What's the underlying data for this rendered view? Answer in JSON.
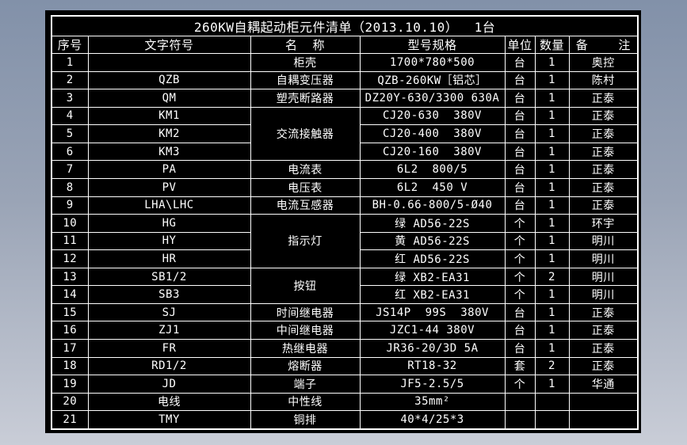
{
  "title": "260KW自耦起动柜元件清单（2013.10.10）  1台",
  "columns": [
    "序号",
    "文字符号",
    "名  称",
    "型号规格",
    "单位",
    "数量",
    "备    注"
  ],
  "rows": [
    {
      "no": "1",
      "symbol": "",
      "name": "柜壳",
      "name_span": 1,
      "spec": "1700*780*500",
      "unit": "台",
      "qty": "1",
      "note": "奥控"
    },
    {
      "no": "2",
      "symbol": "QZB",
      "name": "自耦变压器",
      "name_span": 1,
      "spec": "QZB-260KW［铝芯］",
      "unit": "台",
      "qty": "1",
      "note": "陈村"
    },
    {
      "no": "3",
      "symbol": "QM",
      "name": "塑壳断路器",
      "name_span": 1,
      "spec": "DZ20Y-630/3300 630A",
      "unit": "台",
      "qty": "1",
      "note": "正泰"
    },
    {
      "no": "4",
      "symbol": "KM1",
      "name": "交流接触器",
      "name_span": 3,
      "spec": "CJ20-630  380V",
      "unit": "台",
      "qty": "1",
      "note": "正泰"
    },
    {
      "no": "5",
      "symbol": "KM2",
      "name": null,
      "spec": "CJ20-400  380V",
      "unit": "台",
      "qty": "1",
      "note": "正泰"
    },
    {
      "no": "6",
      "symbol": "KM3",
      "name": null,
      "spec": "CJ20-160  380V",
      "unit": "台",
      "qty": "1",
      "note": "正泰"
    },
    {
      "no": "7",
      "symbol": "PA",
      "name": "电流表",
      "name_span": 1,
      "spec": "6L2  800/5",
      "unit": "台",
      "qty": "1",
      "note": "正泰"
    },
    {
      "no": "8",
      "symbol": "PV",
      "name": "电压表",
      "name_span": 1,
      "spec": "6L2  450 V",
      "unit": "台",
      "qty": "1",
      "note": "正泰"
    },
    {
      "no": "9",
      "symbol": "LHA\\LHC",
      "name": "电流互感器",
      "name_span": 1,
      "spec": "BH-0.66-800/5-Ø40",
      "unit": "台",
      "qty": "1",
      "note": "正泰"
    },
    {
      "no": "10",
      "symbol": "HG",
      "name": "指示灯",
      "name_span": 3,
      "spec": "绿 AD56-22S",
      "unit": "个",
      "qty": "1",
      "note": "环宇"
    },
    {
      "no": "11",
      "symbol": "HY",
      "name": null,
      "spec": "黄 AD56-22S",
      "unit": "个",
      "qty": "1",
      "note": "明川"
    },
    {
      "no": "12",
      "symbol": "HR",
      "name": null,
      "spec": "红 AD56-22S",
      "unit": "个",
      "qty": "1",
      "note": "明川"
    },
    {
      "no": "13",
      "symbol": "SB1/2",
      "name": "按钮",
      "name_span": 2,
      "spec": "绿 XB2-EA31",
      "unit": "个",
      "qty": "2",
      "note": "明川"
    },
    {
      "no": "14",
      "symbol": "SB3",
      "name": null,
      "spec": "红 XB2-EA31",
      "unit": "个",
      "qty": "1",
      "note": "明川"
    },
    {
      "no": "15",
      "symbol": "SJ",
      "name": "时间继电器",
      "name_span": 1,
      "spec": "JS14P  99S  380V",
      "unit": "台",
      "qty": "1",
      "note": "正泰"
    },
    {
      "no": "16",
      "symbol": "ZJ1",
      "name": "中间继电器",
      "name_span": 1,
      "spec": "JZC1-44 380V",
      "unit": "台",
      "qty": "1",
      "note": "正泰"
    },
    {
      "no": "17",
      "symbol": "FR",
      "name": "热继电器",
      "name_span": 1,
      "spec": "JR36-20/3D 5A",
      "unit": "台",
      "qty": "1",
      "note": "正泰"
    },
    {
      "no": "18",
      "symbol": "RD1/2",
      "name": "熔断器",
      "name_span": 1,
      "spec": "RT18-32",
      "unit": "套",
      "qty": "2",
      "note": "正泰"
    },
    {
      "no": "19",
      "symbol": "JD",
      "name": "端子",
      "name_span": 1,
      "spec": "JF5-2.5/5",
      "unit": "个",
      "qty": "1",
      "note": "华通"
    },
    {
      "no": "20",
      "symbol": "电线",
      "name": "中性线",
      "name_span": 1,
      "spec": "35mm²",
      "unit": "",
      "qty": "",
      "note": ""
    },
    {
      "no": "21",
      "symbol": "TMY",
      "name": "铜排",
      "name_span": 1,
      "spec": "40*4/25*3",
      "unit": "",
      "qty": "",
      "note": ""
    }
  ],
  "colors": {
    "background_top": "#8291a9",
    "background_bottom": "#c9cdd7",
    "canvas": "#000000",
    "line": "#ffffff",
    "text": "#ffffff"
  }
}
